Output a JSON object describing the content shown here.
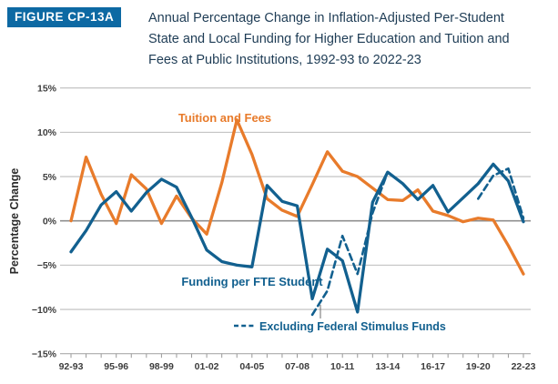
{
  "figure": {
    "badge": "FIGURE CP-13A",
    "title_lines": [
      "Annual Percentage Change in Inflation-Adjusted Per-Student",
      "State and Local Funding for Higher Education and Tuition and",
      "Fees at Public Institutions, 1992-93 to 2022-23"
    ]
  },
  "colors": {
    "tuition_orange": "#E87B2B",
    "funding_blue": "#12608F",
    "badge_bg": "#0D69A3",
    "title_text": "#1E3C55",
    "grid_line": "#BDBDBD",
    "zero_line": "#8F8F8F",
    "axis_line": "#ABABAB",
    "tick_mark": "#999999",
    "tick_text": "#3D3D3D",
    "leader_line": "#6E6E6E"
  },
  "chart_data": {
    "type": "line",
    "ylabel": "Percentage Change",
    "ylim": [
      -15,
      15
    ],
    "ytick_values": [
      15,
      10,
      5,
      0,
      -5,
      -10,
      -15
    ],
    "ytick_labels": [
      "15%",
      "10%",
      "5%",
      "0%",
      "−5%",
      "−10%",
      "−15%"
    ],
    "categories": [
      "92-93",
      "93-94",
      "94-95",
      "95-96",
      "96-97",
      "97-98",
      "98-99",
      "99-00",
      "00-01",
      "01-02",
      "02-03",
      "03-04",
      "04-05",
      "05-06",
      "06-07",
      "07-08",
      "08-09",
      "09-10",
      "10-11",
      "11-12",
      "12-13",
      "13-14",
      "14-15",
      "15-16",
      "16-17",
      "17-18",
      "18-19",
      "19-20",
      "20-21",
      "21-22",
      "22-23"
    ],
    "xtick_label_every": 3,
    "grid": true,
    "legend_position": "inline-labels",
    "series": [
      {
        "name": "Tuition and Fees",
        "style": "solid",
        "color_key": "tuition_orange",
        "values": [
          0.0,
          7.2,
          3.0,
          -0.3,
          5.2,
          3.6,
          -0.3,
          2.8,
          0.3,
          -1.5,
          4.3,
          11.4,
          7.5,
          2.5,
          1.2,
          0.5,
          4.1,
          7.8,
          5.6,
          5.0,
          3.7,
          2.4,
          2.3,
          3.5,
          1.1,
          0.6,
          -0.1,
          0.3,
          0.1,
          -2.8,
          -6.0
        ]
      },
      {
        "name": "Funding per FTE Student",
        "style": "solid",
        "color_key": "funding_blue",
        "values": [
          -3.5,
          -1.1,
          1.8,
          3.3,
          1.1,
          3.2,
          4.7,
          3.8,
          0.4,
          -3.3,
          -4.6,
          -5.0,
          -5.2,
          4.0,
          2.2,
          1.7,
          -8.8,
          -3.2,
          -4.5,
          -10.3,
          2.1,
          5.5,
          4.2,
          2.4,
          4.0,
          1.0,
          2.6,
          4.2,
          6.4,
          4.5,
          -0.1
        ]
      },
      {
        "name": "Excluding Federal Stimulus Funds",
        "style": "dashed",
        "color_key": "funding_blue",
        "values": [
          null,
          null,
          null,
          null,
          null,
          null,
          null,
          null,
          null,
          null,
          null,
          null,
          null,
          null,
          null,
          null,
          -10.6,
          -7.9,
          -1.7,
          -6.0,
          0.9,
          5.5,
          null,
          null,
          null,
          null,
          null,
          2.5,
          5.1,
          5.9,
          0.3
        ]
      }
    ]
  }
}
